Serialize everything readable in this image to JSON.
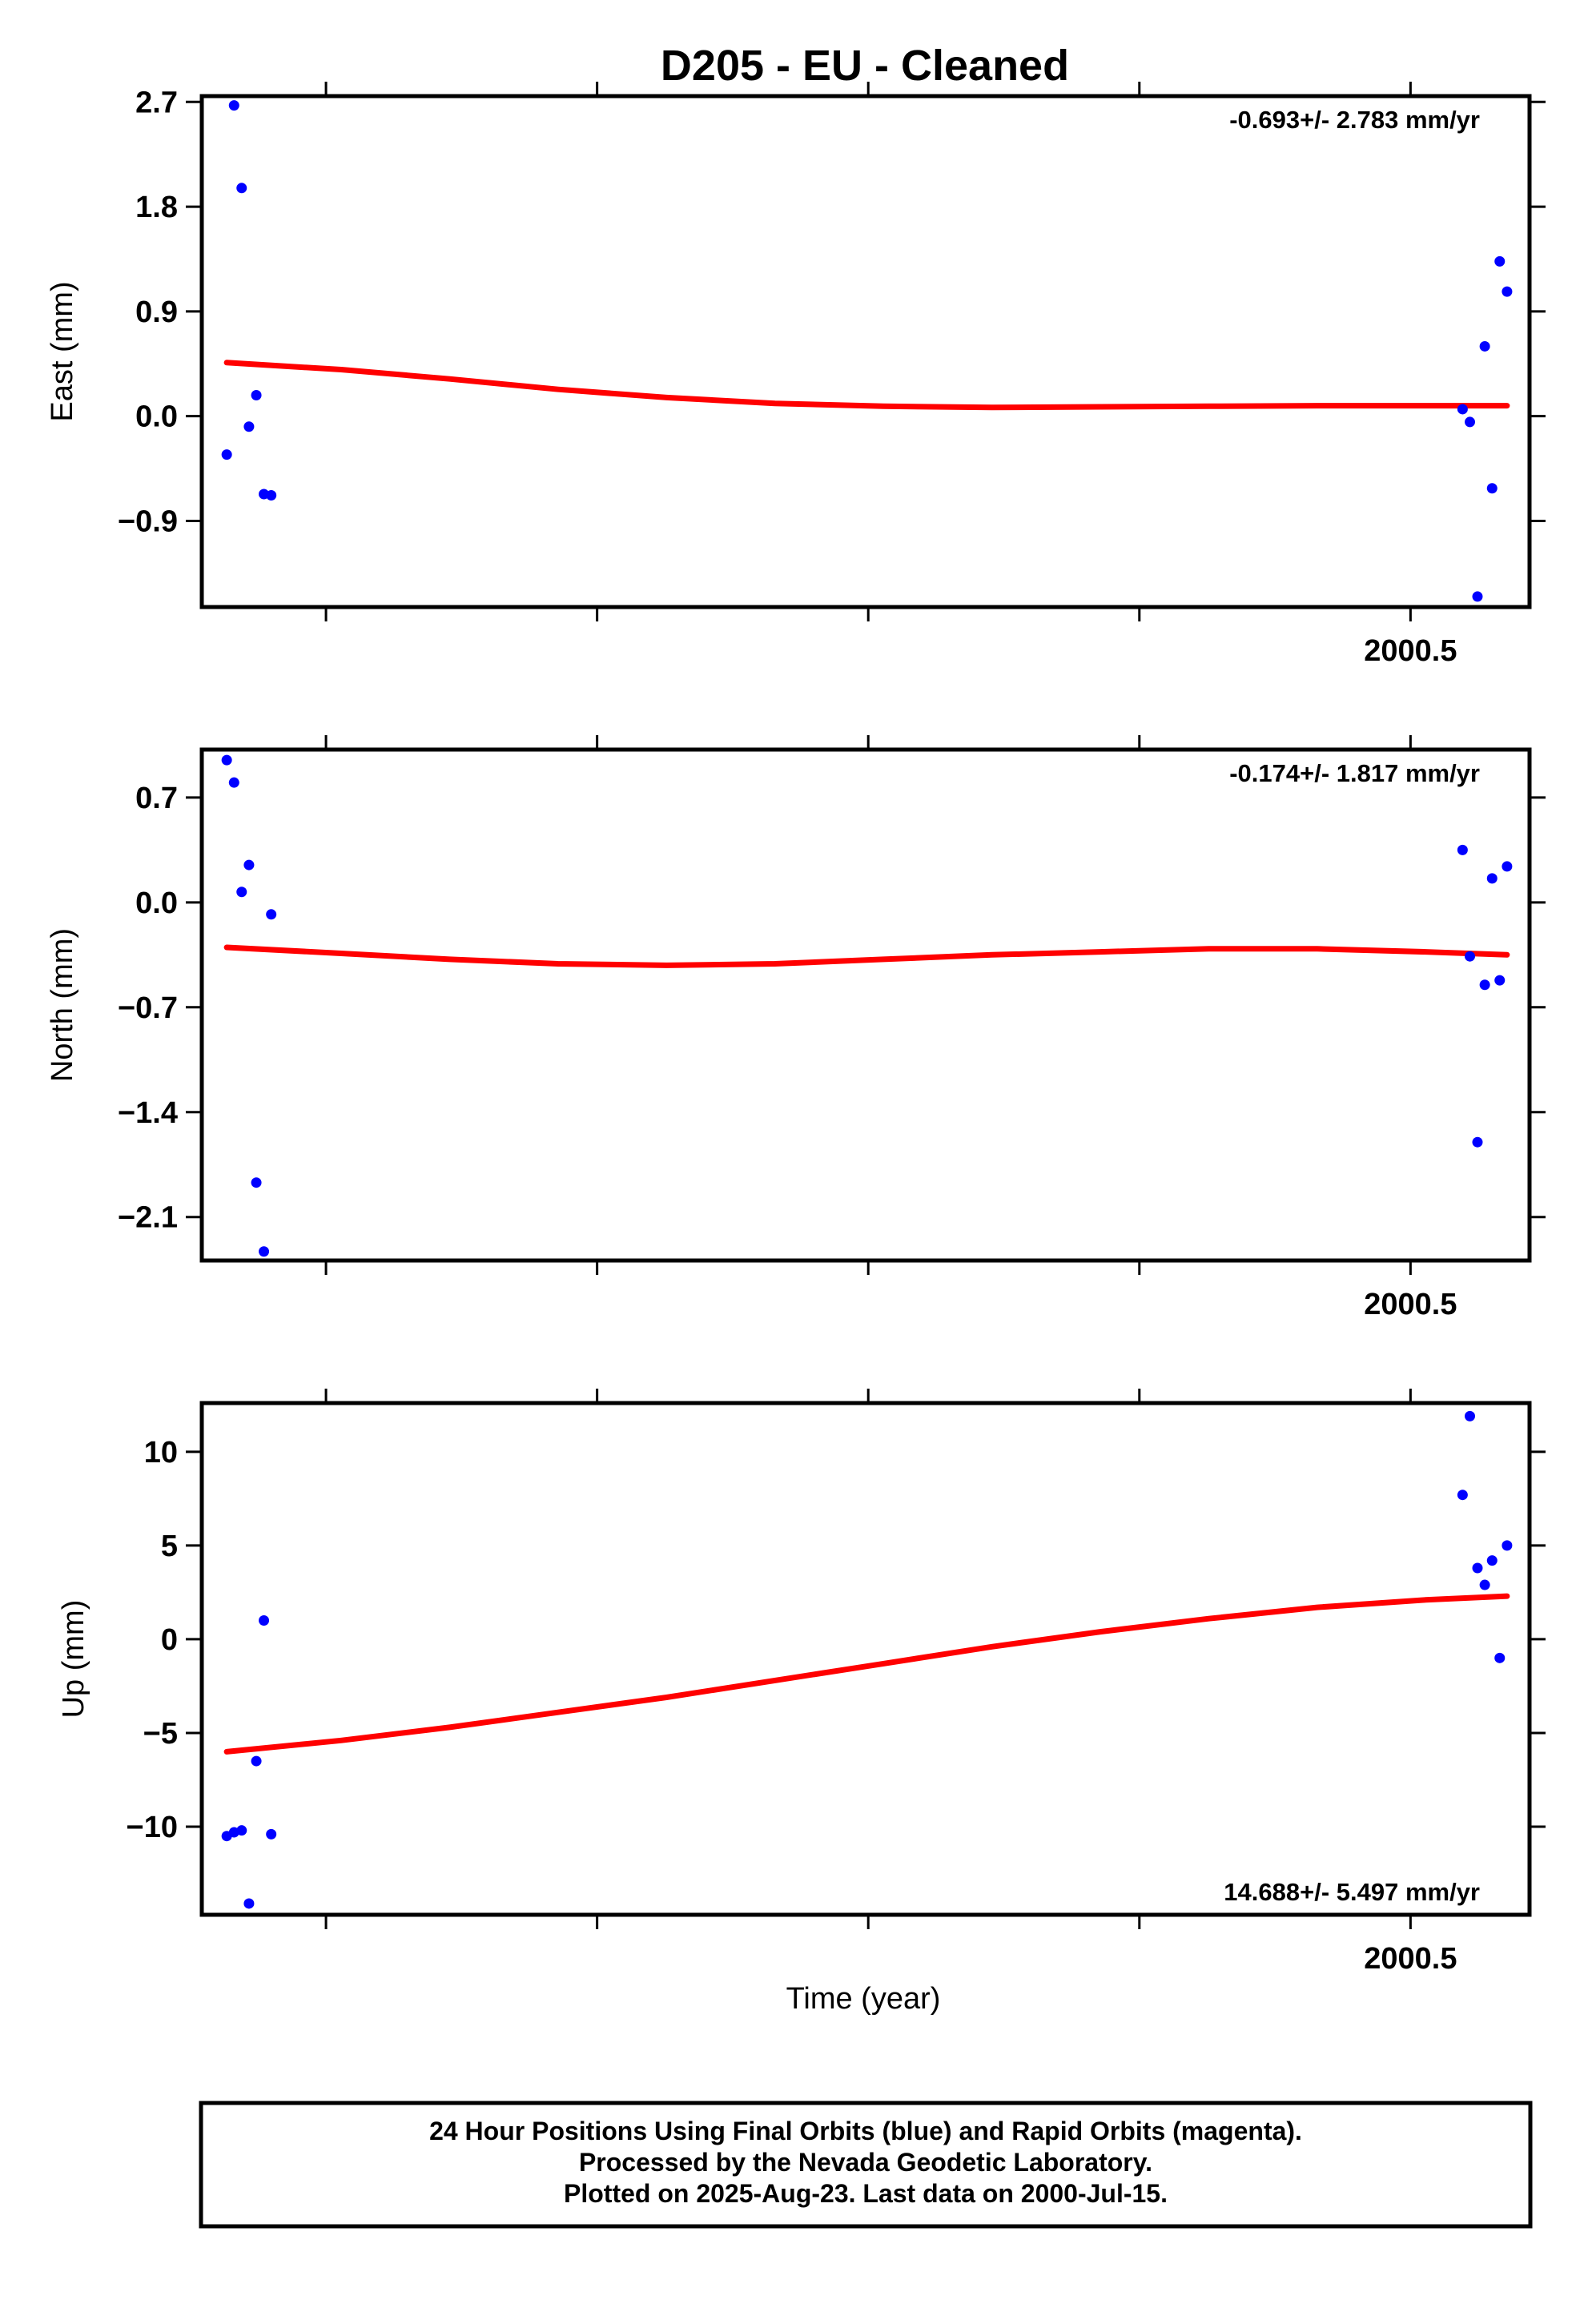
{
  "title": "D205  - EU - Cleaned",
  "xlabel": "Time (year)",
  "x_tick_label": "2000.5",
  "footer": [
    "24 Hour Positions Using Final Orbits (blue) and Rapid Orbits (magenta).",
    "Processed by the Nevada Geodetic Laboratory.",
    "Plotted on 2025-Aug-23. Last data on 2000-Jul-15."
  ],
  "colors": {
    "points": "#0000ff",
    "fit": "#ff0000",
    "axes": "#000000"
  },
  "chart_data": [
    {
      "type": "scatter",
      "ylabel": "East (mm)",
      "rate": "-0.693+/- 2.783 mm/yr",
      "rate_position": "top-right",
      "xlim": [
        2000.0286,
        2000.5183
      ],
      "ylim": [
        -1.64,
        2.75
      ],
      "y_ticks": [
        2.7,
        1.8,
        0.9,
        0.0,
        -0.9
      ],
      "y_tick_labels": [
        "2.7",
        "1.8",
        "0.9",
        "0.0",
        "−0.9"
      ],
      "x_ticks": [
        2000.0744,
        2000.1744,
        2000.2744,
        2000.3744,
        2000.4744
      ],
      "x_tick_labels": [
        "",
        "",
        "",
        "",
        "2000.5"
      ],
      "points": [
        [
          2000.0378,
          -0.33
        ],
        [
          2000.0405,
          2.67
        ],
        [
          2000.0433,
          1.96
        ],
        [
          2000.046,
          -0.09
        ],
        [
          2000.0487,
          0.18
        ],
        [
          2000.0515,
          -0.67
        ],
        [
          2000.0542,
          -0.68
        ],
        [
          2000.4936,
          0.06
        ],
        [
          2000.4963,
          -0.05
        ],
        [
          2000.4991,
          -1.55
        ],
        [
          2000.5018,
          0.6
        ],
        [
          2000.5045,
          -0.62
        ],
        [
          2000.5073,
          1.33
        ],
        [
          2000.51,
          1.07
        ]
      ],
      "fit": [
        [
          2000.0378,
          0.46
        ],
        [
          2000.08,
          0.4
        ],
        [
          2000.12,
          0.32
        ],
        [
          2000.16,
          0.23
        ],
        [
          2000.2,
          0.16
        ],
        [
          2000.24,
          0.11
        ],
        [
          2000.28,
          0.085
        ],
        [
          2000.32,
          0.075
        ],
        [
          2000.36,
          0.08
        ],
        [
          2000.4,
          0.085
        ],
        [
          2000.44,
          0.09
        ],
        [
          2000.48,
          0.09
        ],
        [
          2000.51,
          0.09
        ]
      ]
    },
    {
      "type": "scatter",
      "ylabel": "North (mm)",
      "rate": "-0.174+/- 1.817 mm/yr",
      "rate_position": "top-right",
      "xlim": [
        2000.0286,
        2000.5183
      ],
      "ylim": [
        -2.39,
        1.02
      ],
      "y_ticks": [
        0.7,
        0.0,
        -0.7,
        -1.4,
        -2.1
      ],
      "y_tick_labels": [
        "0.7",
        "0.0",
        "−0.7",
        "−1.4",
        "−2.1"
      ],
      "x_ticks": [
        2000.0744,
        2000.1744,
        2000.2744,
        2000.3744,
        2000.4744
      ],
      "x_tick_labels": [
        "",
        "",
        "",
        "",
        "2000.5"
      ],
      "points": [
        [
          2000.0378,
          0.95
        ],
        [
          2000.0405,
          0.8
        ],
        [
          2000.0433,
          0.07
        ],
        [
          2000.046,
          0.25
        ],
        [
          2000.0487,
          -1.87
        ],
        [
          2000.0515,
          -2.33
        ],
        [
          2000.0542,
          -0.08
        ],
        [
          2000.4936,
          0.35
        ],
        [
          2000.4963,
          -0.36
        ],
        [
          2000.4991,
          -1.6
        ],
        [
          2000.5018,
          -0.55
        ],
        [
          2000.5045,
          0.16
        ],
        [
          2000.5073,
          -0.52
        ],
        [
          2000.51,
          0.24
        ]
      ],
      "fit": [
        [
          2000.0378,
          -0.3
        ],
        [
          2000.08,
          -0.34
        ],
        [
          2000.12,
          -0.38
        ],
        [
          2000.16,
          -0.41
        ],
        [
          2000.2,
          -0.42
        ],
        [
          2000.24,
          -0.41
        ],
        [
          2000.28,
          -0.38
        ],
        [
          2000.32,
          -0.35
        ],
        [
          2000.36,
          -0.33
        ],
        [
          2000.4,
          -0.31
        ],
        [
          2000.44,
          -0.31
        ],
        [
          2000.48,
          -0.33
        ],
        [
          2000.51,
          -0.35
        ]
      ]
    },
    {
      "type": "scatter",
      "ylabel": "Up (mm)",
      "rate": "14.688+/- 5.497 mm/yr",
      "rate_position": "bottom-right",
      "xlim": [
        2000.0286,
        2000.5183
      ],
      "ylim": [
        -14.7,
        12.6
      ],
      "y_ticks": [
        10,
        5,
        0,
        -5,
        -10
      ],
      "y_tick_labels": [
        "10",
        "5",
        "0",
        "−5",
        "−10"
      ],
      "x_ticks": [
        2000.0744,
        2000.1744,
        2000.2744,
        2000.3744,
        2000.4744
      ],
      "x_tick_labels": [
        "",
        "",
        "",
        "",
        "2000.5"
      ],
      "points": [
        [
          2000.0378,
          -10.5
        ],
        [
          2000.0405,
          -10.3
        ],
        [
          2000.0433,
          -10.2
        ],
        [
          2000.046,
          -14.1
        ],
        [
          2000.0487,
          -6.5
        ],
        [
          2000.0515,
          1.0
        ],
        [
          2000.0542,
          -10.4
        ],
        [
          2000.4936,
          7.7
        ],
        [
          2000.4963,
          11.9
        ],
        [
          2000.4991,
          3.8
        ],
        [
          2000.5018,
          2.9
        ],
        [
          2000.5045,
          4.2
        ],
        [
          2000.5073,
          -1.0
        ],
        [
          2000.51,
          5.0
        ]
      ],
      "fit": [
        [
          2000.0378,
          -6.0
        ],
        [
          2000.08,
          -5.4
        ],
        [
          2000.12,
          -4.7
        ],
        [
          2000.16,
          -3.9
        ],
        [
          2000.2,
          -3.1
        ],
        [
          2000.24,
          -2.2
        ],
        [
          2000.28,
          -1.3
        ],
        [
          2000.32,
          -0.4
        ],
        [
          2000.36,
          0.4
        ],
        [
          2000.4,
          1.1
        ],
        [
          2000.44,
          1.7
        ],
        [
          2000.48,
          2.1
        ],
        [
          2000.51,
          2.3
        ]
      ]
    }
  ]
}
